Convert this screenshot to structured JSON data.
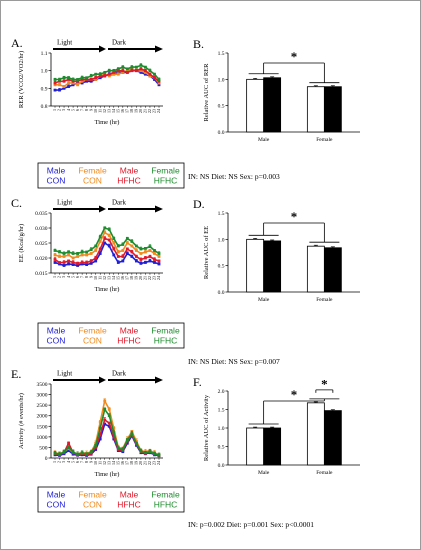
{
  "colors": {
    "male_con": "#1f1fd6",
    "female_con": "#f08a1e",
    "male_hfhc": "#e0182a",
    "female_hfhc": "#1e8c2e",
    "male_bar": "#ffffff",
    "female_bar": "#000000"
  },
  "legend": [
    {
      "line1": "Male",
      "line2": "CON",
      "color": "#1f1fd6"
    },
    {
      "line1": "Female",
      "line2": "CON",
      "color": "#f08a1e"
    },
    {
      "line1": "Male",
      "line2": "HFHC",
      "color": "#e0182a"
    },
    {
      "line1": "Female",
      "line2": "HFHC",
      "color": "#1e8c2e"
    }
  ],
  "hour_ticks": [
    "1",
    "2",
    "3",
    "4",
    "5",
    "6",
    "7",
    "8",
    "9",
    "10",
    "11",
    "12",
    "13",
    "14",
    "15",
    "16",
    "17",
    "18",
    "19",
    "20",
    "21",
    "22",
    "23",
    "24"
  ],
  "chart_data": [
    {
      "panel": "A.",
      "type": "line",
      "ylabel": "RER (VCO2/VO2/hr)",
      "xlabel": "Time (hr)",
      "ylim": [
        0.8,
        1.1
      ],
      "yticks": [
        "0.8",
        "0.9",
        "1.0",
        "1.1"
      ],
      "phase_labels": [
        "Light",
        "Dark"
      ],
      "x": [
        1,
        2,
        3,
        4,
        5,
        6,
        7,
        8,
        9,
        10,
        11,
        12,
        13,
        14,
        15,
        16,
        17,
        18,
        19,
        20,
        21,
        22,
        23,
        24
      ],
      "series": [
        {
          "name": "Male CON",
          "color": "#1f1fd6",
          "values": [
            0.89,
            0.89,
            0.9,
            0.91,
            0.92,
            0.93,
            0.93,
            0.94,
            0.94,
            0.95,
            0.96,
            0.97,
            0.98,
            0.98,
            0.99,
            0.99,
            0.99,
            1.0,
            1.0,
            0.99,
            0.98,
            0.97,
            0.95,
            0.92
          ]
        },
        {
          "name": "Female CON",
          "color": "#f08a1e",
          "values": [
            0.92,
            0.92,
            0.91,
            0.93,
            0.93,
            0.92,
            0.94,
            0.95,
            0.95,
            0.95,
            0.97,
            0.98,
            0.97,
            0.98,
            0.98,
            0.99,
            1.0,
            1.01,
            1.0,
            1.0,
            0.99,
            0.97,
            0.96,
            0.93
          ]
        },
        {
          "name": "Male HFHC",
          "color": "#e0182a",
          "values": [
            0.93,
            0.94,
            0.94,
            0.95,
            0.94,
            0.94,
            0.95,
            0.95,
            0.95,
            0.96,
            0.97,
            0.97,
            0.98,
            0.99,
            1.0,
            1.0,
            0.99,
            1.0,
            1.0,
            1.01,
            1.0,
            0.98,
            0.96,
            0.94
          ]
        },
        {
          "name": "Female HFHC",
          "color": "#1e8c2e",
          "values": [
            0.95,
            0.95,
            0.96,
            0.96,
            0.95,
            0.95,
            0.96,
            0.96,
            0.97,
            0.98,
            0.98,
            0.99,
            1.0,
            1.0,
            1.01,
            1.02,
            1.01,
            1.02,
            1.02,
            1.03,
            1.02,
            1.0,
            0.98,
            0.95
          ]
        }
      ]
    },
    {
      "panel": "B.",
      "type": "bar",
      "ylabel": "Relative AUC of RER",
      "ylim": [
        0.0,
        1.5
      ],
      "yticks": [
        "0.0",
        "0.5",
        "1.0",
        "1.5"
      ],
      "categories": [
        "Male",
        "Female"
      ],
      "series": [
        {
          "name": "CON",
          "values": [
            1.0,
            0.86
          ]
        },
        {
          "name": "HFHC",
          "values": [
            1.03,
            0.86
          ]
        }
      ],
      "significance": [
        "*"
      ],
      "stats_text": "IN: NS        Diet: NS        Sex: p=0.003"
    },
    {
      "panel": "C.",
      "type": "line",
      "ylabel": "EE (Kcal/g/hr)",
      "xlabel": "Time (hr)",
      "ylim": [
        0.015,
        0.035
      ],
      "yticks": [
        "0.015",
        "0.020",
        "0.025",
        "0.030",
        "0.035"
      ],
      "phase_labels": [
        "Light",
        "Dark"
      ],
      "x": [
        1,
        2,
        3,
        4,
        5,
        6,
        7,
        8,
        9,
        10,
        11,
        12,
        13,
        14,
        15,
        16,
        17,
        18,
        19,
        20,
        21,
        22,
        23,
        24
      ],
      "series": [
        {
          "name": "Male CON",
          "color": "#1f1fd6",
          "values": [
            0.0185,
            0.018,
            0.0175,
            0.018,
            0.0178,
            0.0175,
            0.018,
            0.0178,
            0.0182,
            0.019,
            0.0215,
            0.025,
            0.024,
            0.021,
            0.0185,
            0.019,
            0.0215,
            0.0205,
            0.019,
            0.0182,
            0.0185,
            0.019,
            0.0185,
            0.018
          ]
        },
        {
          "name": "Female CON",
          "color": "#f08a1e",
          "values": [
            0.021,
            0.0205,
            0.0205,
            0.021,
            0.02,
            0.0205,
            0.021,
            0.021,
            0.0215,
            0.0225,
            0.0255,
            0.0285,
            0.0275,
            0.025,
            0.022,
            0.0225,
            0.025,
            0.024,
            0.0225,
            0.0215,
            0.022,
            0.0225,
            0.0215,
            0.0205
          ]
        },
        {
          "name": "Male HFHC",
          "color": "#e0182a",
          "values": [
            0.0195,
            0.0185,
            0.0185,
            0.019,
            0.0185,
            0.0182,
            0.0185,
            0.0185,
            0.019,
            0.02,
            0.023,
            0.0265,
            0.026,
            0.023,
            0.0205,
            0.0205,
            0.023,
            0.022,
            0.0205,
            0.0195,
            0.02,
            0.0205,
            0.0195,
            0.019
          ]
        },
        {
          "name": "Female HFHC",
          "color": "#1e8c2e",
          "values": [
            0.0225,
            0.022,
            0.0215,
            0.022,
            0.0215,
            0.0215,
            0.022,
            0.022,
            0.0228,
            0.024,
            0.027,
            0.03,
            0.0295,
            0.0265,
            0.024,
            0.0245,
            0.0265,
            0.0255,
            0.024,
            0.023,
            0.0232,
            0.0238,
            0.0225,
            0.0215
          ]
        }
      ]
    },
    {
      "panel": "D.",
      "type": "bar",
      "ylabel": "Relative AUC of EE",
      "ylim": [
        0.0,
        1.5
      ],
      "yticks": [
        "0.0",
        "0.5",
        "1.0",
        "1.5"
      ],
      "categories": [
        "Male",
        "Female"
      ],
      "series": [
        {
          "name": "CON",
          "values": [
            1.0,
            0.87
          ]
        },
        {
          "name": "HFHC",
          "values": [
            0.97,
            0.84
          ]
        }
      ],
      "significance": [
        "*"
      ],
      "stats_text": "IN: NS        Diet: NS        Sex: p=0.007"
    },
    {
      "panel": "E.",
      "type": "line",
      "ylabel": "Activity (# events/hr)",
      "xlabel": "Time (hr)",
      "ylim": [
        0,
        3500
      ],
      "yticks": [
        "0",
        "500",
        "1000",
        "1500",
        "2000",
        "2500",
        "3000",
        "3500"
      ],
      "phase_labels": [
        "Light",
        "Dark"
      ],
      "x": [
        1,
        2,
        3,
        4,
        5,
        6,
        7,
        8,
        9,
        10,
        11,
        12,
        13,
        14,
        15,
        16,
        17,
        18,
        19,
        20,
        21,
        22,
        23,
        24
      ],
      "series": [
        {
          "name": "Male CON",
          "color": "#1f1fd6",
          "values": [
            150,
            120,
            200,
            350,
            180,
            130,
            150,
            120,
            180,
            400,
            900,
            1600,
            1500,
            900,
            350,
            300,
            700,
            1050,
            600,
            250,
            200,
            250,
            150,
            100
          ]
        },
        {
          "name": "Female CON",
          "color": "#f08a1e",
          "values": [
            250,
            200,
            300,
            450,
            250,
            200,
            250,
            220,
            300,
            700,
            1700,
            2700,
            2300,
            1400,
            500,
            450,
            900,
            1250,
            800,
            350,
            300,
            350,
            250,
            150
          ]
        },
        {
          "name": "Male HFHC",
          "color": "#e0182a",
          "values": [
            200,
            150,
            250,
            700,
            250,
            150,
            200,
            150,
            220,
            500,
            1100,
            1800,
            1650,
            1000,
            400,
            350,
            800,
            1100,
            650,
            300,
            220,
            280,
            180,
            120
          ]
        },
        {
          "name": "Female HFHC",
          "color": "#1e8c2e",
          "values": [
            220,
            180,
            280,
            500,
            280,
            180,
            230,
            200,
            260,
            600,
            1400,
            2300,
            2000,
            1200,
            450,
            400,
            850,
            1150,
            700,
            320,
            250,
            300,
            200,
            130
          ]
        }
      ]
    },
    {
      "panel": "F.",
      "type": "bar",
      "ylabel": "Relative AUC of Activity",
      "ylim": [
        0.0,
        2.0
      ],
      "yticks": [
        "0.0",
        "0.5",
        "1.0",
        "1.5",
        "2.0"
      ],
      "categories": [
        "Male",
        "Female"
      ],
      "series": [
        {
          "name": "CON",
          "values": [
            1.0,
            1.68
          ]
        },
        {
          "name": "HFHC",
          "values": [
            1.0,
            1.47
          ]
        }
      ],
      "significance": [
        "*",
        "*"
      ],
      "stats_text": "IN: p=0.002   Diet: p=0.001  Sex: p<0.0001"
    }
  ]
}
